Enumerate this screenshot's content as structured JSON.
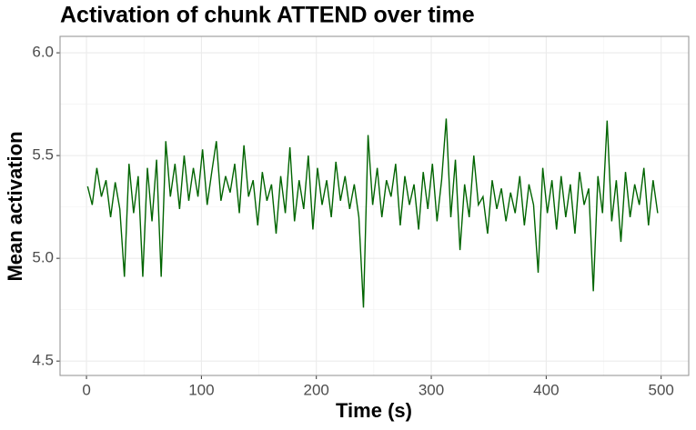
{
  "chart_data": {
    "type": "line",
    "title": "Activation of chunk ATTEND over time",
    "x_label": "Time (s)",
    "y_label": "Mean activation",
    "x": [
      1,
      5,
      9,
      13,
      17,
      21,
      25,
      29,
      33,
      37,
      41,
      45,
      49,
      53,
      57,
      61,
      65,
      69,
      73,
      77,
      81,
      85,
      89,
      93,
      97,
      101,
      105,
      109,
      113,
      117,
      121,
      125,
      129,
      133,
      137,
      141,
      145,
      149,
      153,
      157,
      161,
      165,
      169,
      173,
      177,
      181,
      185,
      189,
      193,
      197,
      201,
      205,
      209,
      213,
      217,
      221,
      225,
      229,
      233,
      237,
      241,
      245,
      249,
      253,
      257,
      261,
      265,
      269,
      273,
      277,
      281,
      285,
      289,
      293,
      297,
      301,
      305,
      309,
      313,
      317,
      321,
      325,
      329,
      333,
      337,
      341,
      345,
      349,
      353,
      357,
      361,
      365,
      369,
      373,
      377,
      381,
      385,
      389,
      393,
      397,
      401,
      405,
      409,
      413,
      417,
      421,
      425,
      429,
      433,
      437,
      441,
      445,
      449,
      453,
      457,
      461,
      465,
      469,
      473,
      477,
      481,
      485,
      489,
      493,
      497
    ],
    "series": [
      {
        "name": "ATTEND",
        "color": "#006400",
        "values": [
          5.35,
          5.26,
          5.44,
          5.3,
          5.38,
          5.2,
          5.37,
          5.24,
          4.91,
          5.46,
          5.22,
          5.4,
          4.91,
          5.44,
          5.18,
          5.48,
          4.91,
          5.57,
          5.3,
          5.46,
          5.24,
          5.5,
          5.28,
          5.44,
          5.3,
          5.53,
          5.26,
          5.42,
          5.57,
          5.28,
          5.4,
          5.32,
          5.46,
          5.22,
          5.55,
          5.3,
          5.38,
          5.16,
          5.42,
          5.28,
          5.36,
          5.12,
          5.4,
          5.22,
          5.54,
          5.18,
          5.38,
          5.24,
          5.5,
          5.14,
          5.44,
          5.26,
          5.38,
          5.2,
          5.47,
          5.28,
          5.4,
          5.24,
          5.36,
          5.2,
          4.76,
          5.6,
          5.26,
          5.44,
          5.2,
          5.38,
          5.3,
          5.46,
          5.16,
          5.4,
          5.26,
          5.36,
          5.14,
          5.42,
          5.24,
          5.46,
          5.18,
          5.38,
          5.68,
          5.2,
          5.48,
          5.04,
          5.36,
          5.2,
          5.5,
          5.26,
          5.3,
          5.12,
          5.38,
          5.24,
          5.34,
          5.18,
          5.32,
          5.22,
          5.4,
          5.16,
          5.36,
          5.26,
          4.93,
          5.44,
          5.22,
          5.38,
          5.14,
          5.4,
          5.2,
          5.36,
          5.12,
          5.42,
          5.26,
          5.34,
          4.84,
          5.4,
          5.22,
          5.67,
          5.18,
          5.38,
          5.08,
          5.42,
          5.2,
          5.36,
          5.26,
          5.44,
          5.16,
          5.38,
          5.22
        ]
      }
    ],
    "xlim": [
      -23,
      524
    ],
    "xticks": [
      0,
      100,
      200,
      300,
      400,
      500
    ],
    "ylim": [
      4.43,
      6.08
    ],
    "yticks": [
      {
        "value": 4.5,
        "label": "4.5"
      },
      {
        "value": 5.0,
        "label": "5.0"
      },
      {
        "value": 5.5,
        "label": "5.5"
      },
      {
        "value": 6.0,
        "label": "6.0"
      }
    ],
    "grid": true
  }
}
